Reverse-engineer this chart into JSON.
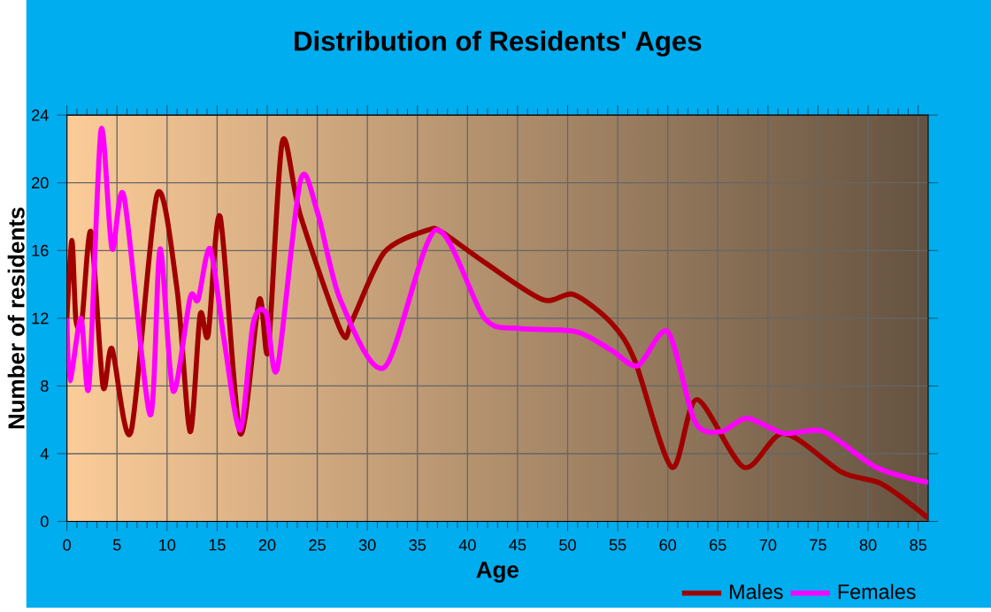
{
  "chart_data": {
    "type": "line",
    "title": "Distribution of Residents' Ages",
    "xlabel": "Age",
    "ylabel": "Number of residents",
    "xlim": [
      0,
      86
    ],
    "xticks": [
      0,
      5,
      10,
      15,
      20,
      25,
      30,
      35,
      40,
      45,
      50,
      55,
      60,
      65,
      70,
      75,
      80,
      85
    ],
    "ylim": [
      0,
      24
    ],
    "yticks": [
      0,
      4,
      8,
      12,
      16,
      20,
      24
    ],
    "grid": true,
    "legend": "bottom right",
    "marker": "none",
    "line_style": "solid",
    "series": [
      {
        "name": "Males",
        "color": "#a00000",
        "x": [
          0,
          0.5,
          0.9,
          1.5,
          2.4,
          3.6,
          4.5,
          6.4,
          9,
          11,
          12.3,
          13.3,
          14.1,
          15.3,
          17.3,
          19.2,
          20.1,
          21.5,
          23.3,
          27.4,
          28.5,
          31.7,
          36,
          37.4,
          41.7,
          47.5,
          50.6,
          54.4,
          56.7,
          60.4,
          62.9,
          67.6,
          71.6,
          77.4,
          81.4,
          86
        ],
        "values": [
          12.0,
          16.6,
          11.9,
          11.9,
          17.1,
          8.0,
          10.2,
          5.3,
          19.3,
          13.7,
          5.3,
          12.2,
          11.0,
          18.0,
          5.2,
          13.1,
          10.1,
          22.4,
          18.1,
          11.2,
          11.9,
          15.9,
          17.2,
          17.1,
          15.3,
          13.1,
          13.4,
          11.7,
          9.5,
          3.2,
          7.2,
          3.2,
          5.2,
          2.9,
          2.2,
          0.2
        ]
      },
      {
        "name": "Females",
        "color": "#ff00ff",
        "x": [
          0,
          0.3,
          1.4,
          2.2,
          3.4,
          4.5,
          5.7,
          8.3,
          9.3,
          10.6,
          12.3,
          13.1,
          14.3,
          15.7,
          17.3,
          18.6,
          19.9,
          21,
          23.3,
          25,
          27.3,
          31.7,
          36.8,
          41.7,
          45.2,
          50.9,
          54.4,
          57,
          60,
          62.7,
          65.3,
          67.9,
          71.6,
          75.6,
          80.8,
          86
        ],
        "values": [
          12.0,
          8.3,
          12.0,
          8.0,
          23.1,
          16.1,
          19.2,
          6.3,
          16.1,
          7.7,
          13.2,
          13.1,
          16.1,
          10.7,
          5.4,
          11.7,
          12.3,
          9.0,
          20.1,
          18.3,
          13.1,
          9.1,
          17.2,
          12.0,
          11.4,
          11.2,
          10.1,
          9.2,
          11.2,
          5.9,
          5.3,
          6.1,
          5.2,
          5.3,
          3.2,
          2.3
        ]
      }
    ]
  }
}
